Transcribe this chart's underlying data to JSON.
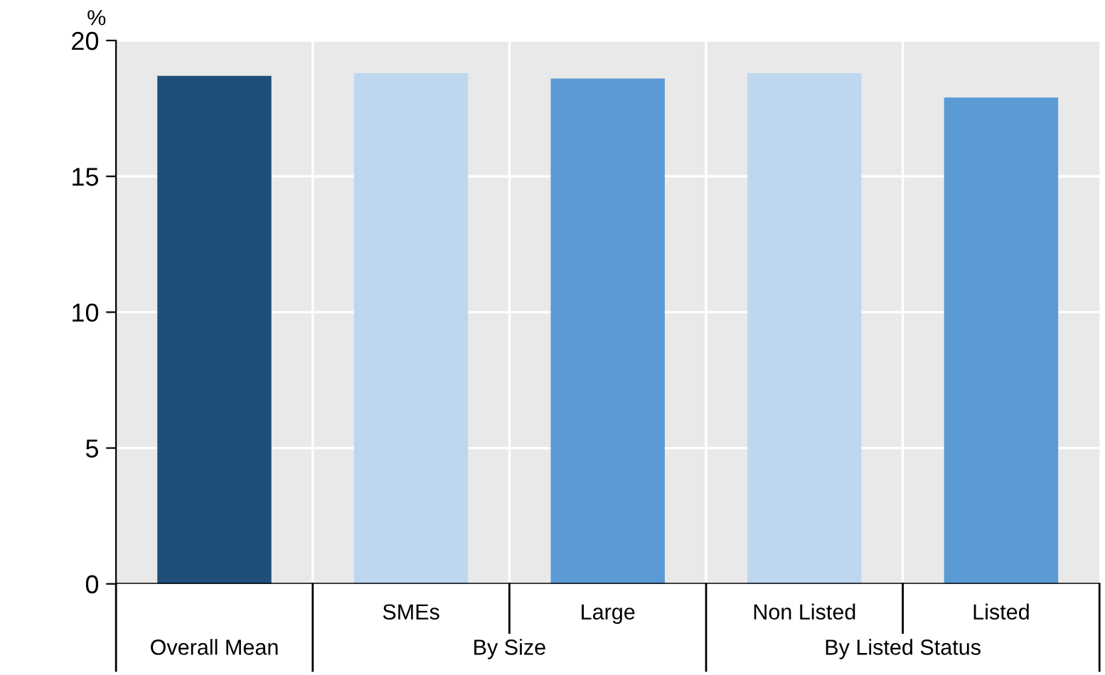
{
  "chart_data": {
    "type": "bar",
    "ylabel": "%",
    "categories": [
      null,
      "SMEs",
      "Large",
      "Non Listed",
      "Listed"
    ],
    "values": [
      18.7,
      18.8,
      18.6,
      18.8,
      17.9
    ],
    "colors": [
      "#1f4e79",
      "#bdd7ee",
      "#5b9bd5",
      "#bdd7ee",
      "#5b9bd5"
    ],
    "ylim": [
      0,
      20
    ],
    "yticks": [
      0,
      5,
      10,
      15,
      20
    ],
    "grid": true,
    "annotations": [
      "Overall Mean",
      "By Size",
      "By Listed Status"
    ]
  }
}
